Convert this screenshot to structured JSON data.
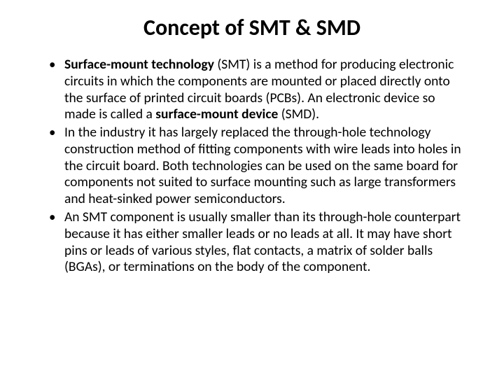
{
  "title": "Concept of SMT & SMD",
  "bullets": {
    "b1_bold1": "Surface-mount technology",
    "b1_paren1": " (SMT) is a method for producing electronic circuits in which the components are mounted or placed directly onto the surface of printed circuit boards (PCBs). An electronic device so made is called a ",
    "b1_bold2": "surface-mount device",
    "b1_paren2": " (SMD).",
    "b2": " In the industry it has largely replaced the through-hole technology construction method of fitting components with wire leads into holes in the circuit board. Both technologies can be used on the same board for components not suited to surface mounting such as large transformers and heat-sinked power semiconductors.",
    "b3": "An SMT component is usually smaller than its through-hole counterpart because it has either smaller leads or no leads at all. It may have short pins or leads of various styles, flat contacts, a matrix of solder balls (BGAs), or terminations on the body of the component."
  },
  "styling": {
    "background_color": "#ffffff",
    "text_color": "#000000",
    "title_fontsize": 32,
    "body_fontsize": 19.5,
    "font_family": "Calibri"
  }
}
